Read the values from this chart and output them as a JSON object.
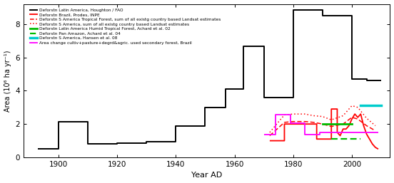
{
  "xlabel": "Year AD",
  "ylabel": "Area (10⁶ ha yr⁻¹)",
  "xlim": [
    1888,
    2013
  ],
  "ylim": [
    0,
    9.2
  ],
  "yticks": [
    0,
    2,
    4,
    6,
    8
  ],
  "xticks": [
    1900,
    1920,
    1940,
    1960,
    1980,
    2000
  ],
  "black_line": {
    "x": [
      1893,
      1900,
      1900,
      1910,
      1910,
      1920,
      1920,
      1930,
      1930,
      1940,
      1940,
      1950,
      1950,
      1957,
      1957,
      1963,
      1963,
      1970,
      1970,
      1980,
      1980,
      1990,
      1990,
      2000,
      2000,
      2005,
      2005,
      2010
    ],
    "y": [
      0.5,
      0.5,
      2.15,
      2.15,
      0.8,
      0.8,
      0.85,
      0.85,
      0.95,
      0.95,
      1.9,
      1.9,
      3.0,
      3.0,
      4.1,
      4.1,
      6.65,
      6.65,
      3.6,
      3.6,
      8.85,
      8.85,
      8.5,
      8.5,
      4.7,
      4.7,
      4.6,
      4.6
    ],
    "color": "#000000",
    "lw": 1.4
  },
  "red_solid": {
    "x": [
      1972,
      1977,
      1977,
      1988,
      1988,
      1993,
      1993,
      1995,
      1995,
      1996,
      1997,
      1998,
      1999,
      2000,
      2001,
      2002,
      2003,
      2004,
      2005,
      2006,
      2007,
      2008,
      2009
    ],
    "y": [
      1.0,
      1.0,
      2.0,
      2.0,
      1.1,
      1.1,
      2.9,
      2.9,
      1.5,
      1.3,
      1.7,
      1.7,
      1.9,
      2.3,
      2.6,
      2.4,
      2.6,
      1.9,
      1.4,
      1.1,
      0.8,
      0.6,
      0.5
    ],
    "color": "#ff0000",
    "lw": 1.3
  },
  "red_dashed": {
    "x": [
      1972,
      1977,
      1980,
      1984,
      1987,
      1990,
      1993,
      1997,
      2000,
      2002,
      2005,
      2008
    ],
    "y": [
      1.3,
      2.1,
      2.15,
      2.15,
      2.1,
      2.0,
      1.85,
      2.0,
      2.4,
      2.3,
      1.9,
      1.6
    ],
    "color": "#ff0000",
    "lw": 1.1
  },
  "red_dotted": {
    "x": [
      1972,
      1977,
      1980,
      1984,
      1987,
      1990,
      1993,
      1997,
      2000,
      2002,
      2005,
      2008
    ],
    "y": [
      1.5,
      2.55,
      2.6,
      2.6,
      2.5,
      2.45,
      2.25,
      2.5,
      3.1,
      3.0,
      2.35,
      1.9
    ],
    "color": "#ff0000",
    "lw": 1.1
  },
  "green_solid": {
    "x": [
      1990,
      2000
    ],
    "y": [
      2.0,
      2.0
    ],
    "color": "#00bb00",
    "lw": 2.0
  },
  "green_dashed": {
    "x": [
      1993,
      2003
    ],
    "y": [
      1.1,
      1.1
    ],
    "color": "#00bb00",
    "lw": 1.6
  },
  "cyan_solid": {
    "x": [
      2003,
      2010
    ],
    "y": [
      3.1,
      3.1
    ],
    "color": "#00cccc",
    "lw": 2.5
  },
  "magenta_line": {
    "x": [
      1970,
      1974,
      1974,
      1979,
      1979,
      1984,
      1984,
      1989,
      1989,
      2009
    ],
    "y": [
      1.35,
      1.35,
      2.55,
      2.55,
      2.05,
      2.05,
      1.35,
      1.35,
      1.5,
      1.5
    ],
    "color": "#ff00ff",
    "lw": 1.3
  },
  "legend_entries": [
    {
      "label": "Deforstn Latin America, Houghton / FAO",
      "color": "#000000",
      "ls": "solid",
      "lw": 1.4
    },
    {
      "label": "Deforstn Brazil, Prodes, INPE",
      "color": "#ff0000",
      "ls": "solid",
      "lw": 1.3
    },
    {
      "label": "Deforstn S America Tropical Forest, sum of all existg country based Landsat estimates",
      "color": "#ff0000",
      "ls": "dashed",
      "lw": 1.1
    },
    {
      "label": "Deforstn S America, sum of all existg country based Landsat estimates",
      "color": "#ff0000",
      "ls": "dotted",
      "lw": 1.1
    },
    {
      "label": "Deforstn Latin America Humid Tropical Forest, Achard et al. 02",
      "color": "#00bb00",
      "ls": "solid",
      "lw": 2.0
    },
    {
      "label": "Deforstn Pan Amazon, Achard et al. 04",
      "color": "#00bb00",
      "ls": "dashed",
      "lw": 1.6
    },
    {
      "label": "Deforstn S America, Hansen et al. 08",
      "color": "#00cccc",
      "ls": "solid",
      "lw": 2.5
    },
    {
      "label": "Area change cultiv+pasture+degrd&agric. used secondary forest, Brazil",
      "color": "#ff00ff",
      "ls": "solid",
      "lw": 1.3
    }
  ]
}
